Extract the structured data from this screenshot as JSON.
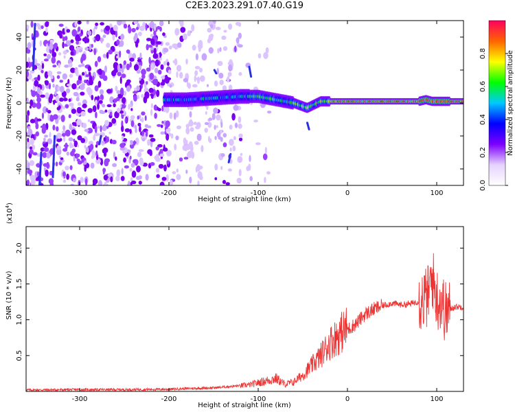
{
  "title": "C2E3.2023.291.07.40.G19",
  "chart_data": [
    {
      "type": "heatmap",
      "title": "C2E3.2023.291.07.40.G19",
      "xlabel": "Height of straight line (km)",
      "ylabel": "Frequency (Hz)",
      "xlim": [
        -360,
        130
      ],
      "ylim": [
        -50,
        50
      ],
      "xticks": [
        -300,
        -200,
        -100,
        0,
        100
      ],
      "yticks": [
        -40,
        -20,
        0,
        20,
        40
      ],
      "colorbar": {
        "label": "Normalized spectral amplitude",
        "range": [
          0,
          1
        ],
        "ticks": [
          "0.0",
          "0.2",
          "0.4",
          "0.6",
          "0.8"
        ],
        "colors": [
          "#ffffff",
          "#e6d2ff",
          "#7d00ff",
          "#0000ff",
          "#00c8ff",
          "#00ff00",
          "#ffff00",
          "#ff6400",
          "#ff0060"
        ]
      },
      "trace": {
        "x": [
          -200,
          -180,
          -150,
          -120,
          -100,
          -80,
          -60,
          -45,
          -30,
          -15,
          0,
          20,
          50,
          80,
          88,
          95,
          105,
          112,
          130
        ],
        "center_hz": [
          2,
          2,
          3,
          4,
          4,
          2,
          0,
          -3,
          1,
          1,
          1,
          1,
          1,
          1,
          2,
          1,
          1,
          1,
          1
        ]
      },
      "grid": false
    },
    {
      "type": "line",
      "xlabel": "Height of straight line (km)",
      "ylabel": "SNR (10 * v/v)",
      "y_multiplier": "(x10^4)",
      "xlim": [
        -360,
        130
      ],
      "ylim": [
        0,
        23000
      ],
      "xticks": [
        -300,
        -200,
        -100,
        0,
        100
      ],
      "yticks": [
        "0.5",
        "1.0",
        "1.5",
        "2.0"
      ],
      "series": [
        {
          "color": "#ee3333",
          "x": [
            -360,
            -300,
            -250,
            -200,
            -180,
            -150,
            -130,
            -110,
            -100,
            -90,
            -80,
            -70,
            -60,
            -50,
            -40,
            -30,
            -20,
            -10,
            0,
            10,
            20,
            30,
            40,
            50,
            60,
            70,
            80,
            90,
            95,
            100,
            105,
            110,
            115,
            120,
            130
          ],
          "y": [
            200,
            250,
            250,
            300,
            400,
            500,
            700,
            900,
            1200,
            1500,
            1800,
            1000,
            1300,
            2200,
            3500,
            4800,
            6500,
            7600,
            8600,
            9500,
            10800,
            11500,
            12000,
            12300,
            12100,
            12200,
            12600,
            13200,
            16000,
            13000,
            12600,
            11000,
            11500,
            11800,
            11800
          ]
        }
      ],
      "grid": false
    }
  ]
}
